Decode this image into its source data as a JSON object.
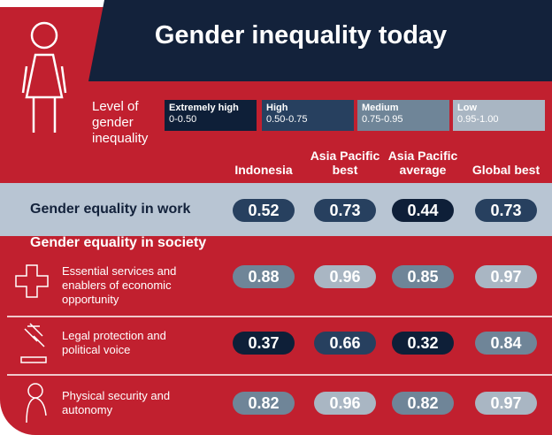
{
  "title": "Gender inequality today",
  "legend": {
    "label": "Level of gender inequality",
    "levels": [
      {
        "name": "Extremely high",
        "range": {
          "label": "0-0.50",
          "min": 0,
          "max": 0.5
        },
        "color": "#0e1f38"
      },
      {
        "name": "High",
        "range": {
          "label": "0.50-0.75",
          "min": 0.5,
          "max": 0.75
        },
        "color": "#27405f"
      },
      {
        "name": "Medium",
        "range": {
          "label": "0.75-0.95",
          "min": 0.75,
          "max": 0.95
        },
        "color": "#6f8598"
      },
      {
        "name": "Low",
        "range": {
          "label": "0.95-1.00",
          "min": 0.95,
          "max": 1
        },
        "color": "#a9b6c3"
      }
    ]
  },
  "columns": [
    "Indonesia",
    "Asia Pacific best",
    "Asia Pacific average",
    "Global best"
  ],
  "sections": [
    {
      "title": "Gender equality in work",
      "values": [
        0.52,
        0.73,
        0.44,
        0.73
      ]
    },
    {
      "title": "Gender equality in society",
      "rows": [
        {
          "label": "Essential services and enablers of economic opportunity",
          "values": [
            0.88,
            0.96,
            0.85,
            0.97
          ]
        },
        {
          "label": "Legal protection and political voice",
          "values": [
            0.37,
            0.66,
            0.32,
            0.84
          ]
        },
        {
          "label": "Physical security and autonomy",
          "values": [
            0.82,
            0.96,
            0.82,
            0.97
          ]
        }
      ]
    }
  ]
}
